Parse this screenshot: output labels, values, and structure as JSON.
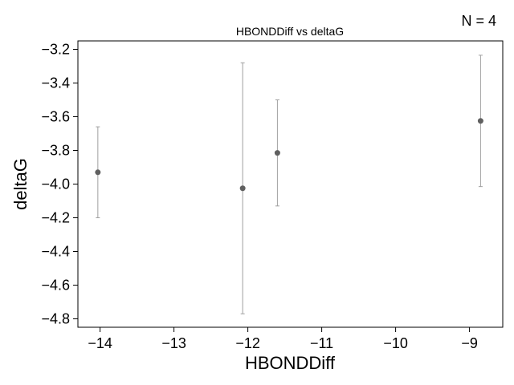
{
  "chart_data": {
    "type": "scatter",
    "title": "HBONDDiff vs deltaG",
    "annotation": "N = 4",
    "xlabel": "HBONDDiff",
    "ylabel": "deltaG",
    "xlim": [
      -14.3,
      -8.55
    ],
    "ylim": [
      -4.85,
      -3.15
    ],
    "xticks": [
      -14,
      -13,
      -12,
      -11,
      -10,
      -9
    ],
    "xtick_labels": [
      "−14",
      "−13",
      "−12",
      "−11",
      "−10",
      "−9"
    ],
    "yticks": [
      -4.8,
      -4.6,
      -4.4,
      -4.2,
      -4.0,
      -3.8,
      -3.6,
      -3.4,
      -3.2
    ],
    "ytick_labels": [
      "−4.8",
      "−4.6",
      "−4.4",
      "−4.2",
      "−4.0",
      "−3.8",
      "−3.6",
      "−3.4",
      "−3.2"
    ],
    "grid": false,
    "legend": "none",
    "marker_color": "#606060",
    "errorbar_color": "#a0a0a0",
    "points": [
      {
        "x": -14.03,
        "y": -3.93,
        "ylow": -4.2,
        "yhigh": -3.66
      },
      {
        "x": -12.07,
        "y": -4.025,
        "ylow": -4.77,
        "yhigh": -3.28
      },
      {
        "x": -11.6,
        "y": -3.815,
        "ylow": -4.13,
        "yhigh": -3.5
      },
      {
        "x": -8.85,
        "y": -3.625,
        "ylow": -4.015,
        "yhigh": -3.235
      }
    ]
  }
}
